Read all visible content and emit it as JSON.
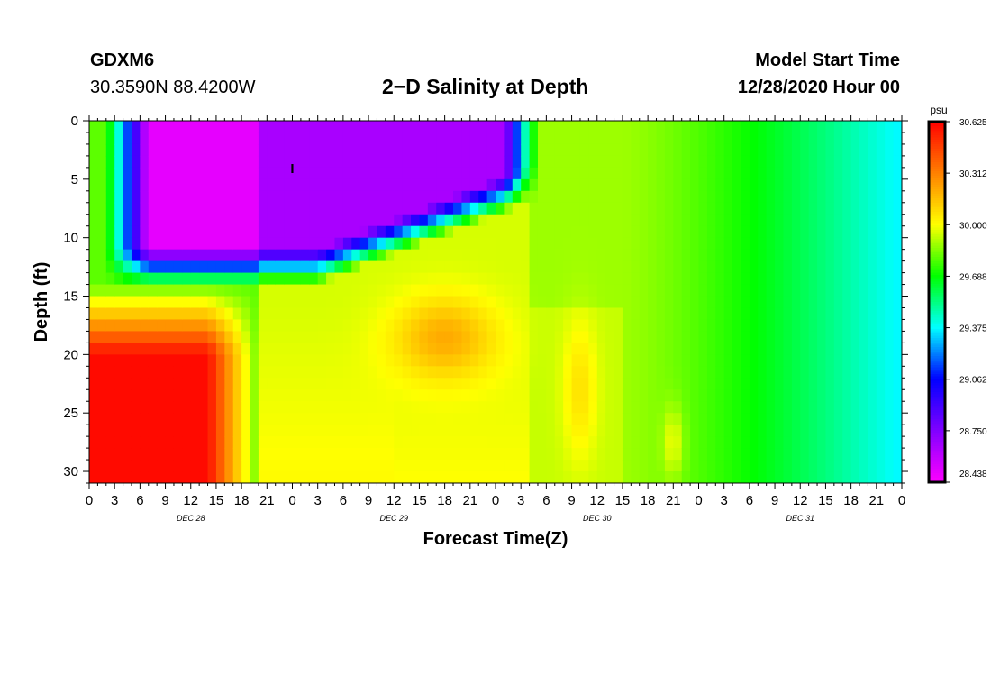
{
  "header": {
    "station": "GDXM6",
    "coords": "30.3590N 88.4200W",
    "title": "2−D Salinity at Depth",
    "model_start_label": "Model Start Time",
    "model_start_value": "12/28/2020 Hour 00"
  },
  "chart_data": {
    "type": "heatmap",
    "title": "2−D Salinity at Depth",
    "xlabel": "Forecast Time(Z)",
    "ylabel": "Depth (ft)",
    "xlim": [
      0,
      96
    ],
    "ylim": [
      31,
      0
    ],
    "x_ticks": [
      0,
      3,
      6,
      9,
      12,
      15,
      18,
      21,
      24,
      27,
      30,
      33,
      36,
      39,
      42,
      45,
      48,
      51,
      54,
      57,
      60,
      63,
      66,
      69,
      72,
      75,
      78,
      81,
      84,
      87,
      90,
      93,
      96
    ],
    "x_tick_labels": [
      "0",
      "3",
      "6",
      "9",
      "12",
      "15",
      "18",
      "21",
      "0",
      "3",
      "6",
      "9",
      "12",
      "15",
      "18",
      "21",
      "0",
      "3",
      "6",
      "9",
      "12",
      "15",
      "18",
      "21",
      "0",
      "3",
      "6",
      "9",
      "12",
      "15",
      "18",
      "21",
      "0"
    ],
    "date_labels": [
      {
        "x": 12,
        "text": "DEC 28"
      },
      {
        "x": 36,
        "text": "DEC 29"
      },
      {
        "x": 60,
        "text": "DEC 30"
      },
      {
        "x": 84,
        "text": "DEC 31"
      }
    ],
    "y_ticks": [
      0,
      5,
      10,
      15,
      20,
      25,
      30
    ],
    "y_tick_labels": [
      "0",
      "5",
      "10",
      "15",
      "20",
      "25",
      "30"
    ],
    "colorbar": {
      "unit": "psu",
      "min": 28.438,
      "max": 30.625,
      "tick_labels": [
        "30.625",
        "30.312",
        "30.000",
        "29.688",
        "29.375",
        "29.062",
        "28.750",
        "28.438"
      ],
      "colormap": [
        "#ff00ff",
        "#8000ff",
        "#0000ff",
        "#00ffff",
        "#00ff00",
        "#ffff00",
        "#ff8000",
        "#ff0000"
      ]
    },
    "features": [
      {
        "name": "fresh-lens",
        "x_range": [
          3,
          53
        ],
        "depth_range": [
          0,
          16
        ],
        "min_psu": 28.45
      },
      {
        "name": "saline-bottom-water",
        "x_range": [
          0,
          20
        ],
        "depth_range": [
          16,
          31
        ],
        "max_psu": 30.6
      },
      {
        "name": "mid-depth-saline-patch",
        "x_range": [
          32,
          52
        ],
        "depth_range": [
          14,
          22
        ],
        "max_psu": 30.2
      },
      {
        "name": "late-period-ambient",
        "x_range": [
          63,
          96
        ],
        "trend": "29.85 decreasing to 29.4"
      }
    ],
    "marker": {
      "x": 24,
      "depth": 4,
      "text": "I"
    }
  }
}
